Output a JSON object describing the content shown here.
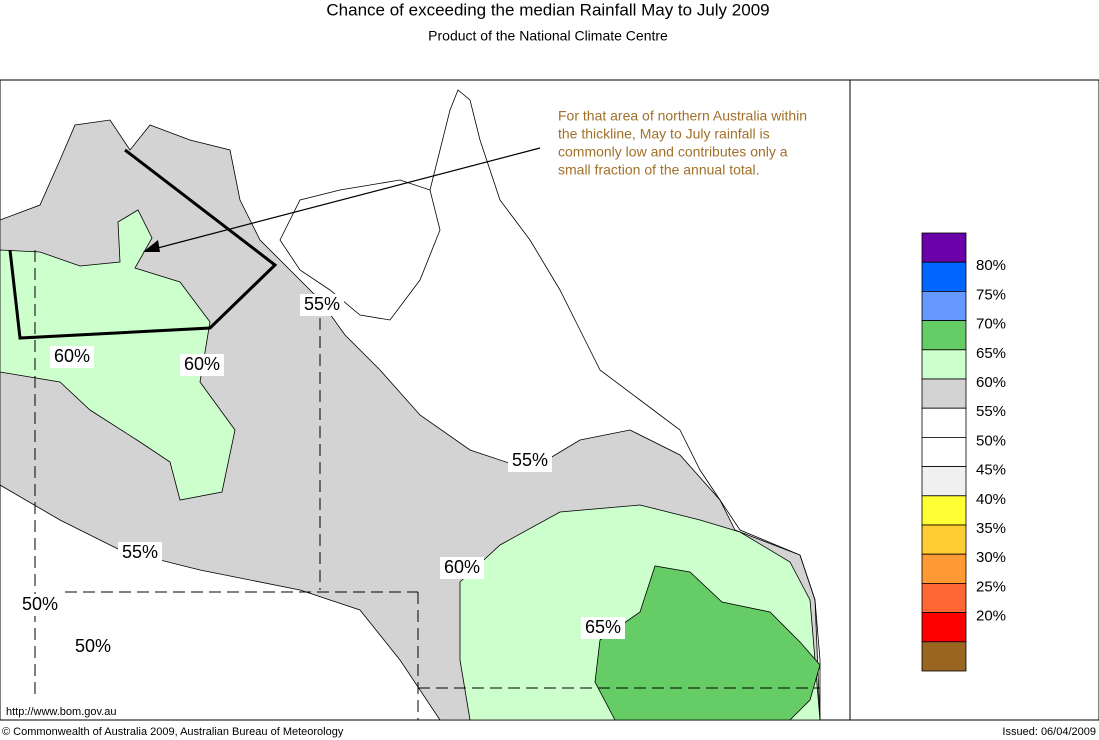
{
  "header": {
    "title": "Chance of exceeding the median Rainfall May to July 2009",
    "subtitle": "Product of the National Climate Centre"
  },
  "annotation": {
    "lines": [
      "For that area of northern Australia within",
      "the thickline, May to July rainfall is",
      "commonly low and contributes only a",
      "small fraction of the annual total."
    ]
  },
  "contour_labels": [
    "55%",
    "60%",
    "60%",
    "55%",
    "55%",
    "60%",
    "65%",
    "50%",
    "50%"
  ],
  "legend": {
    "colors": [
      "#6a00a8",
      "#0066ff",
      "#6699ff",
      "#66cc66",
      "#ccffcc",
      "#d3d3d3",
      "#ffffff",
      "#ffffff",
      "#f0f0f0",
      "#ffff33",
      "#ffcc33",
      "#ff9933",
      "#ff6633",
      "#ff0000",
      "#996622"
    ],
    "labels": [
      "80%",
      "75%",
      "70%",
      "65%",
      "60%",
      "55%",
      "50%",
      "45%",
      "40%",
      "35%",
      "30%",
      "25%",
      "20%"
    ]
  },
  "footer": {
    "url": "http://www.bom.gov.au",
    "copyright": "© Commonwealth of Australia 2009, Australian Bureau of Meteorology",
    "issued": "Issued: 06/04/2009"
  }
}
